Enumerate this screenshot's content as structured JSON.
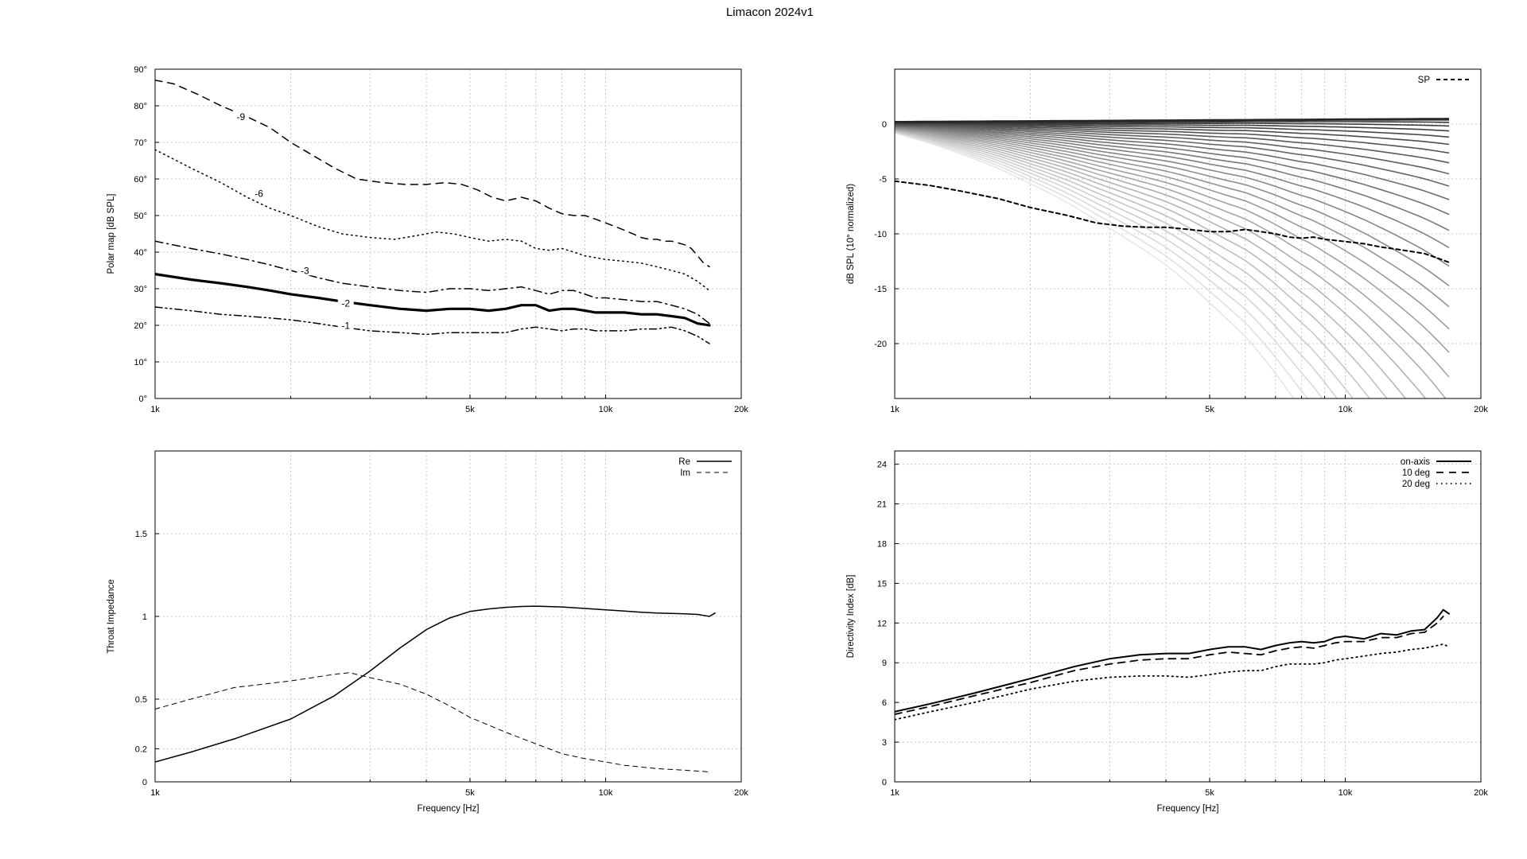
{
  "title": "Limacon 2024v1",
  "chart_data": [
    {
      "id": "polar",
      "type": "line",
      "title": "",
      "xlabel": "",
      "ylabel": "Polar map [dB SPL]",
      "xscale": "log",
      "xlim": [
        1000,
        20000
      ],
      "ylim": [
        0,
        90
      ],
      "xticks": [
        {
          "v": 1000,
          "label": "1k"
        },
        {
          "v": 5000,
          "label": "5k"
        },
        {
          "v": 10000,
          "label": "10k"
        },
        {
          "v": 20000,
          "label": "20k"
        }
      ],
      "xgrid": [
        2000,
        3000,
        4000,
        5000,
        6000,
        7000,
        8000,
        9000,
        10000
      ],
      "yticks": [
        {
          "v": 0,
          "label": "0°"
        },
        {
          "v": 10,
          "label": "10°"
        },
        {
          "v": 20,
          "label": "20°"
        },
        {
          "v": 30,
          "label": "30°"
        },
        {
          "v": 40,
          "label": "40°"
        },
        {
          "v": 50,
          "label": "50°"
        },
        {
          "v": 60,
          "label": "60°"
        },
        {
          "v": 70,
          "label": "70°"
        },
        {
          "v": 80,
          "label": "80°"
        },
        {
          "v": 90,
          "label": "90°"
        }
      ],
      "grid": true,
      "series": [
        {
          "name": "-9",
          "style": "dashed",
          "width": 1.5,
          "label_at": [
            1550,
            76.5
          ],
          "x": [
            1000,
            1100,
            1250,
            1400,
            1600,
            1800,
            2000,
            2200,
            2500,
            2800,
            3200,
            3600,
            4000,
            4400,
            4800,
            5200,
            5600,
            6000,
            6500,
            7000,
            7500,
            8000,
            8500,
            9000,
            9500,
            10000,
            10500,
            11000,
            11500,
            12000,
            12500,
            13000,
            13500,
            14000,
            14500,
            15000,
            15500,
            16000,
            16500,
            17000
          ],
          "y": [
            87,
            86,
            83,
            80,
            77,
            74,
            70,
            67,
            63,
            60,
            59,
            58.5,
            58.5,
            59,
            58.5,
            57,
            55,
            54,
            55,
            54,
            52,
            50.5,
            50,
            50,
            49,
            48,
            47,
            46,
            45,
            44,
            43.5,
            43.5,
            43,
            43,
            42.5,
            42,
            41,
            39,
            37,
            36
          ]
        },
        {
          "name": "-6",
          "style": "dotted",
          "width": 1.5,
          "label_at": [
            1700,
            55.5
          ],
          "x": [
            1000,
            1200,
            1400,
            1600,
            1800,
            2000,
            2300,
            2600,
            3000,
            3400,
            3800,
            4200,
            4600,
            5000,
            5500,
            6000,
            6500,
            7000,
            7500,
            8000,
            8500,
            9000,
            9500,
            10000,
            11000,
            12000,
            13000,
            14000,
            15000,
            16000,
            17000
          ],
          "y": [
            68,
            63,
            59,
            55,
            52,
            50,
            47,
            45,
            44,
            43.5,
            44.5,
            45.5,
            45,
            44,
            43,
            43.5,
            43,
            41,
            40.5,
            41,
            40,
            39,
            38.5,
            38,
            37.5,
            37,
            36,
            35,
            34,
            32,
            29.5
          ]
        },
        {
          "name": "-3",
          "style": "dashdot",
          "width": 1.5,
          "label_at": [
            2150,
            34.5
          ],
          "x": [
            1000,
            1200,
            1400,
            1600,
            1800,
            2000,
            2300,
            2600,
            3000,
            3500,
            4000,
            4500,
            5000,
            5500,
            6000,
            6500,
            7000,
            7500,
            8000,
            8500,
            9000,
            9500,
            10000,
            11000,
            12000,
            13000,
            14000,
            15000,
            16000,
            17000
          ],
          "y": [
            43,
            41,
            39.5,
            38,
            36.5,
            35,
            33,
            31.5,
            30.5,
            29.5,
            29,
            30,
            30,
            29.5,
            30,
            30.5,
            29.5,
            28.5,
            29.5,
            29.5,
            28.5,
            27.5,
            27.5,
            27,
            26.5,
            26.5,
            25.5,
            24.5,
            23,
            20.5
          ]
        },
        {
          "name": "-2",
          "style": "solid",
          "width": 3.2,
          "label_at": [
            2650,
            25.5
          ],
          "x": [
            1000,
            1200,
            1400,
            1600,
            1800,
            2000,
            2300,
            2600,
            3000,
            3500,
            4000,
            4500,
            5000,
            5500,
            6000,
            6500,
            7000,
            7500,
            8000,
            8500,
            9000,
            9500,
            10000,
            11000,
            12000,
            13000,
            14000,
            15000,
            16000,
            17000
          ],
          "y": [
            34,
            32.5,
            31.5,
            30.5,
            29.5,
            28.5,
            27.5,
            26.5,
            25.5,
            24.5,
            24,
            24.5,
            24.5,
            24,
            24.5,
            25.5,
            25.5,
            24,
            24.5,
            24.5,
            24,
            23.5,
            23.5,
            23.5,
            23,
            23,
            22.5,
            22,
            20.5,
            20
          ]
        },
        {
          "name": "-1",
          "style": "dashdotdot",
          "width": 1.5,
          "label_at": [
            2650,
            19.5
          ],
          "x": [
            1000,
            1200,
            1400,
            1600,
            1800,
            2000,
            2300,
            2600,
            3000,
            3500,
            4000,
            4500,
            5000,
            5500,
            6000,
            6500,
            7000,
            7500,
            8000,
            8500,
            9000,
            9500,
            10000,
            11000,
            12000,
            13000,
            14000,
            15000,
            16000,
            17000
          ],
          "y": [
            25,
            24,
            23,
            22.5,
            22,
            21.5,
            20.5,
            19.5,
            18.5,
            18,
            17.5,
            18,
            18,
            18,
            18,
            19,
            19.5,
            19,
            18.5,
            19,
            19,
            18.5,
            18.5,
            18.5,
            19,
            19,
            19.5,
            18.5,
            17,
            15
          ]
        }
      ]
    },
    {
      "id": "spl",
      "type": "line",
      "title": "",
      "xlabel": "",
      "ylabel": "dB SPL (10° normalized)",
      "xscale": "log",
      "xlim": [
        1000,
        20000
      ],
      "ylim": [
        -25,
        5
      ],
      "xticks": [
        {
          "v": 1000,
          "label": "1k"
        },
        {
          "v": 5000,
          "label": "5k"
        },
        {
          "v": 10000,
          "label": "10k"
        },
        {
          "v": 20000,
          "label": "20k"
        }
      ],
      "xgrid": [
        2000,
        3000,
        4000,
        5000,
        6000,
        7000,
        8000,
        9000,
        10000
      ],
      "yticks": [
        {
          "v": -20,
          "label": "-20"
        },
        {
          "v": -15,
          "label": "-15"
        },
        {
          "v": -10,
          "label": "-10"
        },
        {
          "v": -5,
          "label": "-5"
        },
        {
          "v": 0,
          "label": "0"
        }
      ],
      "grid": true,
      "legend": "top-right",
      "family": {
        "count": 30,
        "color_dark": "#262626",
        "color_light": "#e6e6e6"
      },
      "series": [
        {
          "name": "SP",
          "style": "dashed-bold",
          "width": 2,
          "legend": true,
          "x": [
            1000,
            1200,
            1400,
            1700,
            2000,
            2400,
            2800,
            3200,
            3600,
            4000,
            4500,
            5000,
            5500,
            6000,
            6500,
            7000,
            7500,
            8000,
            8500,
            9000,
            9500,
            10000,
            11000,
            12000,
            13000,
            14000,
            15000,
            16000,
            17000
          ],
          "y": [
            -5.2,
            -5.6,
            -6.1,
            -6.8,
            -7.6,
            -8.3,
            -9,
            -9.3,
            -9.4,
            -9.4,
            -9.6,
            -9.8,
            -9.8,
            -9.6,
            -9.8,
            -10,
            -10.3,
            -10.4,
            -10.3,
            -10.5,
            -10.6,
            -10.7,
            -10.9,
            -11.2,
            -11.4,
            -11.6,
            -11.8,
            -12.2,
            -12.6
          ]
        }
      ]
    },
    {
      "id": "impedance",
      "type": "line",
      "title": "",
      "xlabel": "Frequency [Hz]",
      "ylabel": "Throat Impedance",
      "xscale": "log",
      "xlim": [
        1000,
        20000
      ],
      "ylim": [
        0,
        2
      ],
      "xticks": [
        {
          "v": 1000,
          "label": "1k"
        },
        {
          "v": 5000,
          "label": "5k"
        },
        {
          "v": 10000,
          "label": "10k"
        },
        {
          "v": 20000,
          "label": "20k"
        }
      ],
      "xgrid": [
        2000,
        3000,
        4000,
        5000,
        6000,
        7000,
        8000,
        9000,
        10000
      ],
      "yticks": [
        {
          "v": 0,
          "label": "0"
        },
        {
          "v": 0.2,
          "label": "0.2"
        },
        {
          "v": 0.5,
          "label": "0.5"
        },
        {
          "v": 1,
          "label": "1"
        },
        {
          "v": 1.5,
          "label": "1.5"
        }
      ],
      "grid": true,
      "legend": "top-right",
      "series": [
        {
          "name": "Re",
          "style": "solid",
          "width": 1.5,
          "legend": true,
          "x": [
            1000,
            1200,
            1500,
            2000,
            2500,
            3000,
            3500,
            4000,
            4500,
            5000,
            5500,
            6000,
            6500,
            7000,
            8000,
            9000,
            10000,
            11000,
            12000,
            13000,
            14000,
            15000,
            16000,
            17000,
            17500
          ],
          "y": [
            0.12,
            0.18,
            0.26,
            0.38,
            0.52,
            0.67,
            0.81,
            0.92,
            0.99,
            1.03,
            1.045,
            1.055,
            1.06,
            1.062,
            1.057,
            1.048,
            1.04,
            1.032,
            1.025,
            1.02,
            1.018,
            1.016,
            1.012,
            1.0,
            1.02
          ]
        },
        {
          "name": "Im",
          "style": "thin-dashed",
          "width": 1,
          "legend": true,
          "x": [
            1000,
            1200,
            1500,
            2000,
            2500,
            2700,
            3000,
            3500,
            4000,
            4500,
            5000,
            6000,
            7000,
            8000,
            9000,
            10000,
            11000,
            12000,
            13000,
            14000,
            15000,
            16000,
            17000
          ],
          "y": [
            0.44,
            0.5,
            0.57,
            0.61,
            0.65,
            0.66,
            0.63,
            0.59,
            0.53,
            0.46,
            0.39,
            0.3,
            0.23,
            0.17,
            0.14,
            0.12,
            0.1,
            0.09,
            0.08,
            0.075,
            0.07,
            0.065,
            0.06
          ]
        }
      ]
    },
    {
      "id": "di",
      "type": "line",
      "title": "",
      "xlabel": "Frequency [Hz]",
      "ylabel": "Directivity Index [dB]",
      "xscale": "log",
      "xlim": [
        1000,
        20000
      ],
      "ylim": [
        0,
        25
      ],
      "xticks": [
        {
          "v": 1000,
          "label": "1k"
        },
        {
          "v": 5000,
          "label": "5k"
        },
        {
          "v": 10000,
          "label": "10k"
        },
        {
          "v": 20000,
          "label": "20k"
        }
      ],
      "xgrid": [
        2000,
        3000,
        4000,
        5000,
        6000,
        7000,
        8000,
        9000,
        10000
      ],
      "yticks": [
        {
          "v": 0,
          "label": "0"
        },
        {
          "v": 3,
          "label": "3"
        },
        {
          "v": 6,
          "label": "6"
        },
        {
          "v": 9,
          "label": "9"
        },
        {
          "v": 12,
          "label": "12"
        },
        {
          "v": 15,
          "label": "15"
        },
        {
          "v": 18,
          "label": "18"
        },
        {
          "v": 21,
          "label": "21"
        },
        {
          "v": 24,
          "label": "24"
        }
      ],
      "grid": true,
      "legend": "top-right",
      "series": [
        {
          "name": "on-axis",
          "style": "solid",
          "width": 2,
          "legend": true,
          "x": [
            1000,
            1200,
            1500,
            2000,
            2500,
            3000,
            3500,
            4000,
            4500,
            5000,
            5500,
            6000,
            6500,
            7000,
            7500,
            8000,
            8500,
            9000,
            9500,
            10000,
            11000,
            12000,
            13000,
            14000,
            15000,
            16000,
            16500,
            17000
          ],
          "y": [
            5.3,
            5.9,
            6.7,
            7.8,
            8.7,
            9.3,
            9.6,
            9.7,
            9.7,
            10,
            10.2,
            10.2,
            10,
            10.3,
            10.5,
            10.6,
            10.5,
            10.6,
            10.9,
            11,
            10.8,
            11.2,
            11.1,
            11.4,
            11.5,
            12.4,
            13,
            12.7
          ]
        },
        {
          "name": "10 deg",
          "style": "dashed",
          "width": 1.8,
          "legend": true,
          "x": [
            1000,
            1200,
            1500,
            2000,
            2500,
            3000,
            3500,
            4000,
            4500,
            5000,
            5500,
            6000,
            6500,
            7000,
            7500,
            8000,
            8500,
            9000,
            9500,
            10000,
            11000,
            12000,
            13000,
            14000,
            15000,
            16000,
            16500
          ],
          "y": [
            5.1,
            5.7,
            6.5,
            7.5,
            8.4,
            8.9,
            9.2,
            9.3,
            9.3,
            9.6,
            9.8,
            9.7,
            9.6,
            9.9,
            10.1,
            10.2,
            10.1,
            10.3,
            10.5,
            10.6,
            10.6,
            10.9,
            10.9,
            11.2,
            11.3,
            12,
            12.5
          ]
        },
        {
          "name": "20 deg",
          "style": "dotted",
          "width": 1.8,
          "legend": true,
          "x": [
            1000,
            1200,
            1500,
            2000,
            2500,
            3000,
            3500,
            4000,
            4500,
            5000,
            5500,
            6000,
            6500,
            7000,
            7500,
            8000,
            8500,
            9000,
            9500,
            10000,
            11000,
            12000,
            13000,
            14000,
            15000,
            16000,
            16500,
            17000
          ],
          "y": [
            4.7,
            5.3,
            6,
            7,
            7.6,
            7.9,
            8,
            8,
            7.9,
            8.1,
            8.3,
            8.4,
            8.4,
            8.7,
            8.9,
            8.9,
            8.9,
            9,
            9.2,
            9.3,
            9.5,
            9.7,
            9.8,
            10,
            10.1,
            10.3,
            10.4,
            10.2
          ]
        }
      ]
    }
  ]
}
